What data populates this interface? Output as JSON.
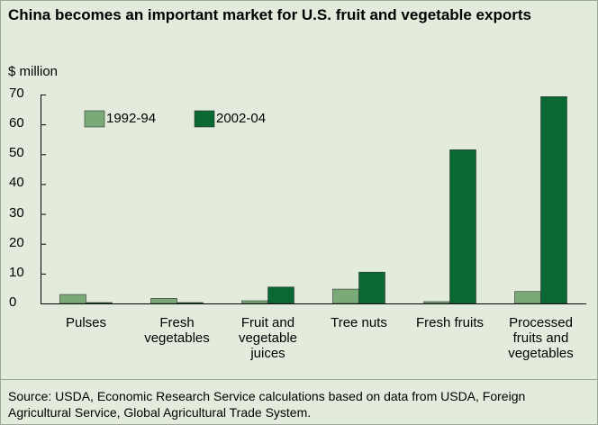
{
  "chart_data": {
    "type": "bar",
    "title": "China becomes an important market for U.S. fruit and vegetable exports",
    "y_label": "$ million",
    "categories": [
      "Pulses",
      "Fresh vegetables",
      "Fruit and vegetable juices",
      "Tree nuts",
      "Fresh fruits",
      "Processed fruits and vegetables"
    ],
    "series": [
      {
        "name": "1992-94",
        "color": "#7aaa78",
        "values": [
          3.0,
          1.7,
          0.9,
          4.8,
          0.6,
          4.0
        ]
      },
      {
        "name": "2002-04",
        "color": "#0a6832",
        "values": [
          0.3,
          0.3,
          5.5,
          10.5,
          51.5,
          69.3
        ]
      }
    ],
    "ylim": [
      0,
      70
    ],
    "yticks": [
      0,
      10,
      20,
      30,
      40,
      50,
      60,
      70
    ],
    "legend": "upper left",
    "source": "Source: USDA, Economic Research Service calculations based on data from USDA, Foreign Agricultural Service, Global Agricultural Trade System."
  }
}
